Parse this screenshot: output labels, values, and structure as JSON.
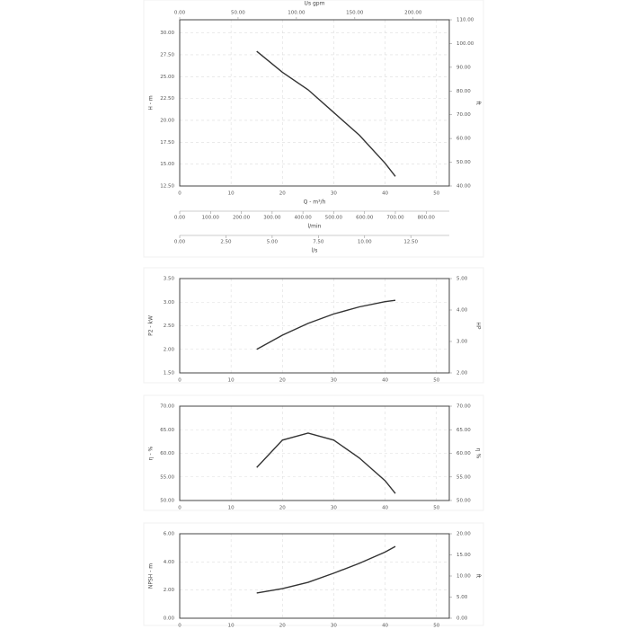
{
  "chart_data": [
    {
      "type": "line",
      "x": [
        15,
        20,
        25,
        30,
        35,
        40,
        42
      ],
      "series": [
        {
          "color": "#333333",
          "values": [
            27.9,
            25.5,
            23.5,
            20.9,
            18.3,
            15.1,
            13.6
          ]
        }
      ],
      "xlabel": "Q - m³/h",
      "ylabel": "H - m",
      "y2label": "ft",
      "xlim": [
        0,
        52.5
      ],
      "xticks": [
        0,
        10,
        20,
        30,
        40,
        50
      ],
      "ylim": [
        12.5,
        31.5
      ],
      "yticks": [
        {
          "value": 12.5,
          "label": "12.50"
        },
        {
          "value": 15,
          "label": "15.00"
        },
        {
          "value": 17.5,
          "label": "17.50"
        },
        {
          "value": 20,
          "label": "20.00"
        },
        {
          "value": 22.5,
          "label": "22.50"
        },
        {
          "value": 25,
          "label": "25.00"
        },
        {
          "value": 27.5,
          "label": "27.50"
        },
        {
          "value": 30,
          "label": "30.00"
        }
      ],
      "y2lim": [
        40,
        110
      ],
      "y2ticks": [
        {
          "value": 40,
          "label": "40.00"
        },
        {
          "value": 50,
          "label": "50.00"
        },
        {
          "value": 60,
          "label": "60.00"
        },
        {
          "value": 70,
          "label": "70.00"
        },
        {
          "value": 80,
          "label": "80.00"
        },
        {
          "value": 90,
          "label": "90.00"
        },
        {
          "value": 100,
          "label": "100.00"
        },
        {
          "value": 110,
          "label": "110.00"
        }
      ],
      "grid": true,
      "extra_axes": [
        {
          "label": "Us gpm",
          "lim": [
            0,
            231
          ],
          "ticks": [
            {
              "value": 0,
              "label": "0.00"
            },
            {
              "value": 50,
              "label": "50.00"
            },
            {
              "value": 100,
              "label": "100.00"
            },
            {
              "value": 150,
              "label": "150.00"
            },
            {
              "value": 200,
              "label": "200.00"
            }
          ]
        },
        {
          "label": "l/min",
          "lim": [
            0,
            875
          ],
          "ticks": [
            {
              "value": 0,
              "label": "0.00"
            },
            {
              "value": 100,
              "label": "100.00"
            },
            {
              "value": 200,
              "label": "200.00"
            },
            {
              "value": 300,
              "label": "300.00"
            },
            {
              "value": 400,
              "label": "400.00"
            },
            {
              "value": 500,
              "label": "500.00"
            },
            {
              "value": 600,
              "label": "600.00"
            },
            {
              "value": 700,
              "label": "700.00"
            },
            {
              "value": 800,
              "label": "800.00"
            }
          ]
        },
        {
          "label": "l/s",
          "lim": [
            0,
            14.58
          ],
          "ticks": [
            {
              "value": 0,
              "label": "0.00"
            },
            {
              "value": 2.5,
              "label": "2.50"
            },
            {
              "value": 5,
              "label": "5.00"
            },
            {
              "value": 7.5,
              "label": "7.50"
            },
            {
              "value": 10,
              "label": "10.00"
            },
            {
              "value": 12.5,
              "label": "12.50"
            }
          ]
        }
      ]
    },
    {
      "type": "line",
      "x": [
        15,
        20,
        25,
        30,
        35,
        40,
        42
      ],
      "series": [
        {
          "color": "#333333",
          "values": [
            2.0,
            2.3,
            2.55,
            2.75,
            2.9,
            3.01,
            3.04
          ]
        }
      ],
      "ylabel": "P2 - kW",
      "y2label": "HP",
      "xlim": [
        0,
        52.5
      ],
      "xticks": [
        0,
        10,
        20,
        30,
        40,
        50
      ],
      "ylim": [
        1.5,
        3.5
      ],
      "yticks": [
        {
          "value": 1.5,
          "label": "1.50"
        },
        {
          "value": 2,
          "label": "2.00"
        },
        {
          "value": 2.5,
          "label": "2.50"
        },
        {
          "value": 3,
          "label": "3.00"
        },
        {
          "value": 3.5,
          "label": "3.50"
        }
      ],
      "y2lim": [
        2,
        5
      ],
      "y2ticks": [
        {
          "value": 2,
          "label": "2.00"
        },
        {
          "value": 3,
          "label": "3.00"
        },
        {
          "value": 4,
          "label": "4.00"
        },
        {
          "value": 5,
          "label": "5.00"
        }
      ],
      "grid": true
    },
    {
      "type": "line",
      "x": [
        15,
        20,
        25,
        30,
        35,
        40,
        42
      ],
      "series": [
        {
          "color": "#333333",
          "values": [
            57.0,
            62.8,
            64.3,
            62.8,
            59.0,
            54.2,
            51.5
          ]
        }
      ],
      "ylabel": "η - %",
      "y2label": "η %",
      "xlim": [
        0,
        52.5
      ],
      "xticks": [
        0,
        10,
        20,
        30,
        40,
        50
      ],
      "ylim": [
        50,
        70
      ],
      "yticks": [
        {
          "value": 50,
          "label": "50.00"
        },
        {
          "value": 55,
          "label": "55.00"
        },
        {
          "value": 60,
          "label": "60.00"
        },
        {
          "value": 65,
          "label": "65.00"
        },
        {
          "value": 70,
          "label": "70.00"
        }
      ],
      "y2lim": [
        50,
        70
      ],
      "y2ticks": [
        {
          "value": 50,
          "label": "50.00"
        },
        {
          "value": 55,
          "label": "55.00"
        },
        {
          "value": 60,
          "label": "60.00"
        },
        {
          "value": 65,
          "label": "65.00"
        },
        {
          "value": 70,
          "label": "70.00"
        }
      ],
      "grid": true
    },
    {
      "type": "line",
      "x": [
        15,
        20,
        25,
        30,
        35,
        40,
        42
      ],
      "series": [
        {
          "color": "#333333",
          "values": [
            1.79,
            2.1,
            2.55,
            3.2,
            3.9,
            4.7,
            5.1
          ]
        }
      ],
      "ylabel": "NPSH - m",
      "y2label": "ft",
      "xlim": [
        0,
        52.5
      ],
      "xticks": [
        0,
        10,
        20,
        30,
        40,
        50
      ],
      "ylim": [
        0,
        6
      ],
      "yticks": [
        {
          "value": 0,
          "label": "0.00"
        },
        {
          "value": 2,
          "label": "2.00"
        },
        {
          "value": 4,
          "label": "4.00"
        },
        {
          "value": 6,
          "label": "6.00"
        }
      ],
      "y2lim": [
        0,
        20
      ],
      "y2ticks": [
        {
          "value": 0,
          "label": "0.00"
        },
        {
          "value": 5,
          "label": "5.00"
        },
        {
          "value": 10,
          "label": "10.00"
        },
        {
          "value": 15,
          "label": "15.00"
        },
        {
          "value": 20,
          "label": "20.00"
        }
      ],
      "grid": true
    }
  ]
}
